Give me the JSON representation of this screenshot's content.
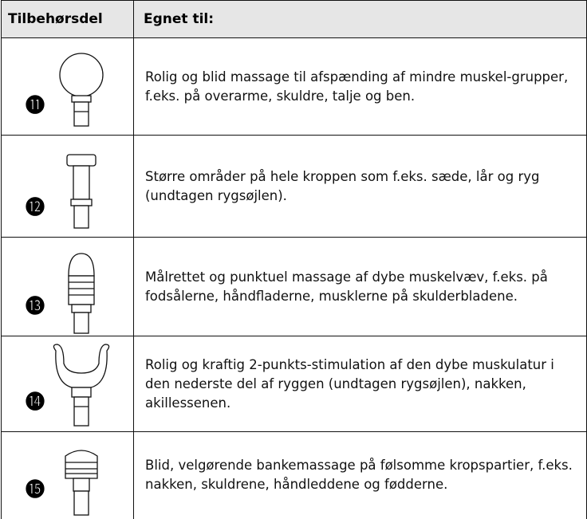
{
  "table": {
    "headers": [
      "Tilbehørsdel",
      "Egnet til:"
    ],
    "rows": [
      {
        "number": "⓫",
        "text": "Rolig og blid massage til afspænding af mindre muskel-grupper, f.eks. på overarme, skuldre, talje og ben."
      },
      {
        "number": "⓬",
        "text": "Større områder på hele kroppen som f.eks. sæde, lår og ryg (undtagen rygsøjlen)."
      },
      {
        "number": "⓭",
        "text": "Målrettet og punktuel massage af dybe muskelvæv, f.eks. på fodsålerne, håndfladerne, musklerne på skulderbladene."
      },
      {
        "number": "⓮",
        "text": "Rolig og kraftig 2-punkts-stimulation af den dybe muskulatur i den nederste del af ryggen (undtagen rygsøjlen), nakken, akillessenen."
      },
      {
        "number": "⓯",
        "text": "Blid, velgørende bankemassage på følsomme kropspartier, f.eks. nakken, skuldrene, håndleddene og fødderne."
      }
    ]
  }
}
